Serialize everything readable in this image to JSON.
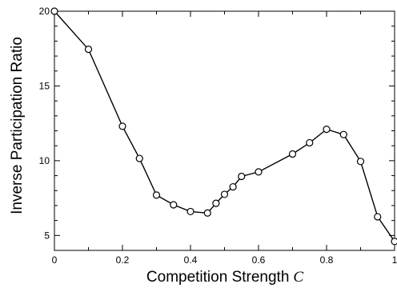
{
  "chart_data": {
    "type": "line",
    "xlabel": "Competition Strength",
    "xlabel_var": "C",
    "ylabel": "Inverse Participation Ratio",
    "xlim": [
      0,
      1
    ],
    "ylim": [
      4,
      20
    ],
    "xticks": [
      0,
      0.2,
      0.4,
      0.6,
      0.8,
      1
    ],
    "xtick_labels": [
      "0",
      "0.2",
      "0.4",
      "0.6",
      "0.8",
      "1"
    ],
    "yticks": [
      5,
      10,
      15,
      20
    ],
    "ytick_labels": [
      "5",
      "10",
      "15",
      "20"
    ],
    "grid": false,
    "marker": "open-circle",
    "line_color": "#000000",
    "series": [
      {
        "x": [
          0,
          0.1,
          0.2,
          0.25,
          0.3,
          0.35,
          0.4,
          0.45,
          0.475,
          0.5,
          0.525,
          0.55,
          0.6,
          0.7,
          0.75,
          0.8,
          0.85,
          0.9,
          0.95,
          1.0
        ],
        "y": [
          20.0,
          17.45,
          12.3,
          10.15,
          7.7,
          7.05,
          6.6,
          6.5,
          7.15,
          7.75,
          8.25,
          8.95,
          9.25,
          10.45,
          11.2,
          12.1,
          11.75,
          9.95,
          6.25,
          4.6
        ]
      }
    ]
  }
}
